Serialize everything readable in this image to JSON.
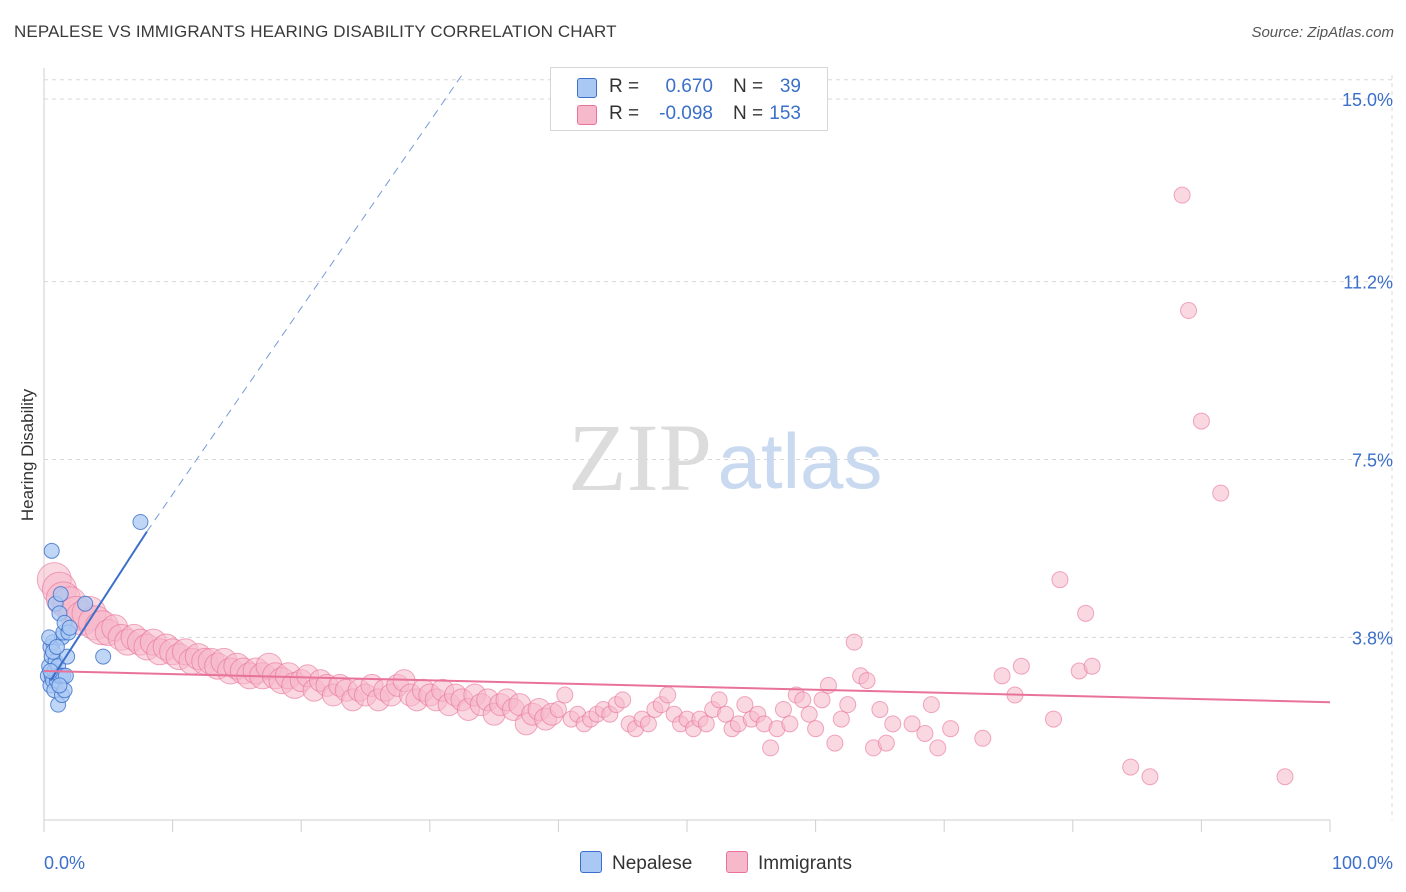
{
  "header": {
    "title": "NEPALESE VS IMMIGRANTS HEARING DISABILITY CORRELATION CHART",
    "source": "Source: ZipAtlas.com"
  },
  "watermark": {
    "zip": "ZIP",
    "atlas": "atlas"
  },
  "colors": {
    "blue": "#3b6fc9",
    "blue_fill": "#a9c8f3",
    "pink": "#e8729a",
    "pink_fill": "#f6b8cb",
    "grid": "#d8d8d8"
  },
  "legend": {
    "rows": [
      {
        "r_label": "R =",
        "r_value": "0.670",
        "n_label": "N =",
        "n_value": "39",
        "series": "blue"
      },
      {
        "r_label": "R =",
        "r_value": "-0.098",
        "n_label": "N =",
        "n_value": "153",
        "series": "pink"
      }
    ]
  },
  "bottom_legend": [
    {
      "label": "Nepalese",
      "series": "blue"
    },
    {
      "label": "Immigrants",
      "series": "pink"
    }
  ],
  "chart_data": {
    "type": "scatter",
    "title": "NEPALESE VS IMMIGRANTS HEARING DISABILITY CORRELATION CHART",
    "xlabel": "",
    "ylabel": "Hearing Disability",
    "xlim": [
      0,
      100
    ],
    "ylim": [
      0,
      15.5
    ],
    "x_tick_labels": [
      "0.0%",
      "100.0%"
    ],
    "y_ticks": [
      3.8,
      7.5,
      11.2,
      15.0
    ],
    "y_tick_labels": [
      "3.8%",
      "7.5%",
      "11.2%",
      "15.0%"
    ],
    "series": [
      {
        "name": "Nepalese",
        "color": "blue",
        "points": [
          [
            0.3,
            3.0
          ],
          [
            0.4,
            3.2
          ],
          [
            0.5,
            3.6
          ],
          [
            0.5,
            2.8
          ],
          [
            0.6,
            3.4
          ],
          [
            0.6,
            3.0
          ],
          [
            0.7,
            2.9
          ],
          [
            0.7,
            3.7
          ],
          [
            0.8,
            3.1
          ],
          [
            0.8,
            2.7
          ],
          [
            0.9,
            3.3
          ],
          [
            0.9,
            4.5
          ],
          [
            1.0,
            3.0
          ],
          [
            1.0,
            2.9
          ],
          [
            1.1,
            3.2
          ],
          [
            1.1,
            2.4
          ],
          [
            1.2,
            4.3
          ],
          [
            1.2,
            3.0
          ],
          [
            1.3,
            4.7
          ],
          [
            1.3,
            3.0
          ],
          [
            1.4,
            3.8
          ],
          [
            1.4,
            2.6
          ],
          [
            1.5,
            3.0
          ],
          [
            1.5,
            3.9
          ],
          [
            1.6,
            4.1
          ],
          [
            1.6,
            2.7
          ],
          [
            1.7,
            3.0
          ],
          [
            1.8,
            3.4
          ],
          [
            1.9,
            3.9
          ],
          [
            2.0,
            4.0
          ],
          [
            0.6,
            5.6
          ],
          [
            0.4,
            3.8
          ],
          [
            0.5,
            3.1
          ],
          [
            0.7,
            3.5
          ],
          [
            1.0,
            3.6
          ],
          [
            1.2,
            2.8
          ],
          [
            4.6,
            3.4
          ],
          [
            3.2,
            4.5
          ],
          [
            7.5,
            6.2
          ]
        ],
        "trend": {
          "x0": 0.5,
          "y0": 2.9,
          "x1": 8.0,
          "y1": 6.0,
          "dashed_to": [
            32.5,
            15.5
          ]
        }
      },
      {
        "name": "Immigrants",
        "color": "pink",
        "points": [
          [
            0.8,
            5.0
          ],
          [
            1.2,
            4.8
          ],
          [
            1.5,
            4.6
          ],
          [
            2.0,
            4.5
          ],
          [
            2.5,
            4.3
          ],
          [
            3.0,
            4.2
          ],
          [
            3.5,
            4.3
          ],
          [
            4.0,
            4.1
          ],
          [
            4.5,
            4.0
          ],
          [
            5.0,
            3.9
          ],
          [
            5.5,
            4.0
          ],
          [
            6.0,
            3.8
          ],
          [
            6.5,
            3.7
          ],
          [
            7.0,
            3.8
          ],
          [
            7.5,
            3.7
          ],
          [
            8.0,
            3.6
          ],
          [
            8.5,
            3.7
          ],
          [
            9.0,
            3.5
          ],
          [
            9.5,
            3.6
          ],
          [
            10.0,
            3.5
          ],
          [
            10.5,
            3.4
          ],
          [
            11.0,
            3.5
          ],
          [
            11.5,
            3.3
          ],
          [
            12.0,
            3.4
          ],
          [
            12.5,
            3.3
          ],
          [
            13.0,
            3.3
          ],
          [
            13.5,
            3.2
          ],
          [
            14.0,
            3.3
          ],
          [
            14.5,
            3.1
          ],
          [
            15.0,
            3.2
          ],
          [
            15.5,
            3.1
          ],
          [
            16.0,
            3.0
          ],
          [
            16.5,
            3.1
          ],
          [
            17.0,
            3.0
          ],
          [
            17.5,
            3.2
          ],
          [
            18.0,
            3.0
          ],
          [
            18.5,
            2.9
          ],
          [
            19.0,
            3.0
          ],
          [
            19.5,
            2.8
          ],
          [
            20.0,
            2.9
          ],
          [
            20.5,
            3.0
          ],
          [
            21.0,
            2.7
          ],
          [
            21.5,
            2.9
          ],
          [
            22.0,
            2.8
          ],
          [
            22.5,
            2.6
          ],
          [
            23.0,
            2.8
          ],
          [
            23.5,
            2.7
          ],
          [
            24.0,
            2.5
          ],
          [
            24.5,
            2.7
          ],
          [
            25.0,
            2.6
          ],
          [
            25.5,
            2.8
          ],
          [
            26.0,
            2.5
          ],
          [
            26.5,
            2.7
          ],
          [
            27.0,
            2.6
          ],
          [
            27.5,
            2.8
          ],
          [
            28.0,
            2.9
          ],
          [
            28.5,
            2.6
          ],
          [
            29.0,
            2.5
          ],
          [
            29.5,
            2.7
          ],
          [
            30.0,
            2.6
          ],
          [
            30.5,
            2.5
          ],
          [
            31.0,
            2.7
          ],
          [
            31.5,
            2.4
          ],
          [
            32.0,
            2.6
          ],
          [
            32.5,
            2.5
          ],
          [
            33.0,
            2.3
          ],
          [
            33.5,
            2.6
          ],
          [
            34.0,
            2.4
          ],
          [
            34.5,
            2.5
          ],
          [
            35.0,
            2.2
          ],
          [
            35.5,
            2.4
          ],
          [
            36.0,
            2.5
          ],
          [
            36.5,
            2.3
          ],
          [
            37.0,
            2.4
          ],
          [
            37.5,
            2.0
          ],
          [
            38.0,
            2.2
          ],
          [
            38.5,
            2.3
          ],
          [
            39.0,
            2.1
          ],
          [
            39.5,
            2.2
          ],
          [
            40.0,
            2.3
          ],
          [
            40.5,
            2.6
          ],
          [
            41.0,
            2.1
          ],
          [
            41.5,
            2.2
          ],
          [
            42.0,
            2.0
          ],
          [
            42.5,
            2.1
          ],
          [
            43.0,
            2.2
          ],
          [
            43.5,
            2.3
          ],
          [
            44.0,
            2.2
          ],
          [
            44.5,
            2.4
          ],
          [
            45.0,
            2.5
          ],
          [
            45.5,
            2.0
          ],
          [
            46.0,
            1.9
          ],
          [
            46.5,
            2.1
          ],
          [
            47.0,
            2.0
          ],
          [
            47.5,
            2.3
          ],
          [
            48.0,
            2.4
          ],
          [
            48.5,
            2.6
          ],
          [
            49.0,
            2.2
          ],
          [
            49.5,
            2.0
          ],
          [
            50.0,
            2.1
          ],
          [
            50.5,
            1.9
          ],
          [
            51.0,
            2.1
          ],
          [
            51.5,
            2.0
          ],
          [
            52.0,
            2.3
          ],
          [
            52.5,
            2.5
          ],
          [
            53.0,
            2.2
          ],
          [
            53.5,
            1.9
          ],
          [
            54.0,
            2.0
          ],
          [
            54.5,
            2.4
          ],
          [
            55.0,
            2.1
          ],
          [
            55.5,
            2.2
          ],
          [
            56.0,
            2.0
          ],
          [
            56.5,
            1.5
          ],
          [
            57.0,
            1.9
          ],
          [
            57.5,
            2.3
          ],
          [
            58.0,
            2.0
          ],
          [
            58.5,
            2.6
          ],
          [
            59.0,
            2.5
          ],
          [
            59.5,
            2.2
          ],
          [
            60.0,
            1.9
          ],
          [
            60.5,
            2.5
          ],
          [
            61.0,
            2.8
          ],
          [
            61.5,
            1.6
          ],
          [
            62.0,
            2.1
          ],
          [
            62.5,
            2.4
          ],
          [
            63.0,
            3.7
          ],
          [
            63.5,
            3.0
          ],
          [
            64.0,
            2.9
          ],
          [
            64.5,
            1.5
          ],
          [
            65.0,
            2.3
          ],
          [
            65.5,
            1.6
          ],
          [
            66.0,
            2.0
          ],
          [
            67.5,
            2.0
          ],
          [
            68.5,
            1.8
          ],
          [
            69.0,
            2.4
          ],
          [
            69.5,
            1.5
          ],
          [
            70.5,
            1.9
          ],
          [
            73.0,
            1.7
          ],
          [
            74.5,
            3.0
          ],
          [
            75.5,
            2.6
          ],
          [
            76.0,
            3.2
          ],
          [
            78.5,
            2.1
          ],
          [
            79.0,
            5.0
          ],
          [
            80.5,
            3.1
          ],
          [
            81.0,
            4.3
          ],
          [
            81.5,
            3.2
          ],
          [
            84.5,
            1.1
          ],
          [
            86.0,
            0.9
          ],
          [
            88.5,
            13.0
          ],
          [
            89.0,
            10.6
          ],
          [
            90.0,
            8.3
          ],
          [
            91.5,
            6.8
          ],
          [
            96.5,
            0.9
          ]
        ],
        "trend": {
          "x0": 0,
          "y0": 3.1,
          "x1": 100,
          "y1": 2.45
        }
      }
    ]
  }
}
